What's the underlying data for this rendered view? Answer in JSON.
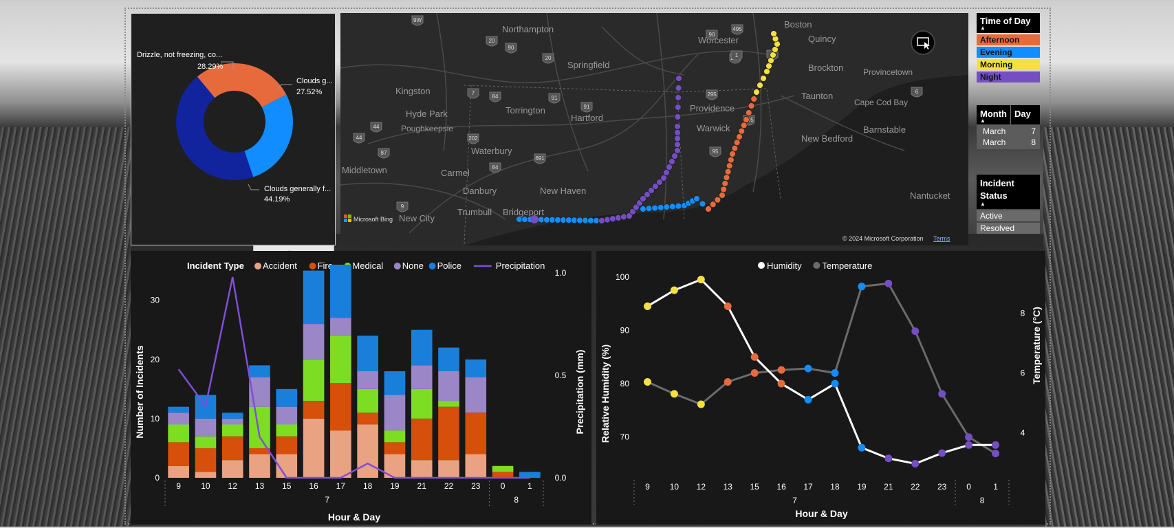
{
  "donut": {
    "slices": [
      {
        "label": "Drizzle, not freezing, co...",
        "pct_label": "28.29%",
        "value": 28.29,
        "color": "#E66A3C"
      },
      {
        "label": "Clouds g...",
        "pct_label": "27.52%",
        "value": 27.52,
        "color": "#118DFF"
      },
      {
        "label": "Clouds generally f...",
        "pct_label": "44.19%",
        "value": 44.19,
        "color": "#12239E"
      }
    ]
  },
  "map": {
    "cities": [
      "Northampton",
      "Boston",
      "Worcester",
      "Quincy",
      "Springfield",
      "Brockton",
      "Kingston",
      "Hyde Park",
      "Poughkeepsie",
      "Torrington",
      "Hartford",
      "Providence",
      "Taunton",
      "Provincetown",
      "Warwick",
      "Cape Cod Bay",
      "Barnstable",
      "Waterbury",
      "New Bedford",
      "Middletown",
      "Carmel",
      "New Haven",
      "Danbury",
      "Nantucket",
      "New City",
      "Trumbull",
      "Bridgeport"
    ],
    "shields": [
      "9W",
      "91",
      "20",
      "90",
      "20",
      "90",
      "84",
      "7",
      "44",
      "91",
      "202",
      "84",
      "691",
      "87",
      "44",
      "9",
      "495",
      "290",
      "1",
      "295",
      "195",
      "95",
      "6",
      "1"
    ],
    "brand": "Microsoft Bing",
    "copyright": "© 2024 Microsoft Corporation",
    "terms": "Terms",
    "route_colors": {
      "Afternoon": "#E66A3C",
      "Evening": "#118DFF",
      "Morning": "#F5E13D",
      "Night": "#744EC2"
    }
  },
  "slicers": {
    "time_of_day": {
      "title": "Time of Day",
      "items": [
        {
          "label": "Afternoon",
          "color": "#E66A3C"
        },
        {
          "label": "Evening",
          "color": "#118DFF"
        },
        {
          "label": "Morning",
          "color": "#F5E13D"
        },
        {
          "label": "Night",
          "color": "#744EC2"
        }
      ]
    },
    "month_day": {
      "col1": "Month",
      "col2": "Day",
      "rows": [
        {
          "month": "March",
          "day": "7"
        },
        {
          "month": "March",
          "day": "8"
        }
      ]
    },
    "incident_status": {
      "title": "Incident Status",
      "items": [
        "Active",
        "Resolved"
      ]
    }
  },
  "chart_data": [
    {
      "type": "bar",
      "stacked": true,
      "legend_title": "Incident Type",
      "categories": [
        "9",
        "10",
        "12",
        "13",
        "15",
        "16",
        "17",
        "18",
        "19",
        "21",
        "22",
        "23",
        "0",
        "1"
      ],
      "groups": [
        {
          "label": "7",
          "count": 12
        },
        {
          "label": "8",
          "count": 2
        }
      ],
      "series": [
        {
          "name": "Accident",
          "color": "#E9A282",
          "values": [
            2,
            1,
            3,
            4,
            4,
            10,
            8,
            9,
            4,
            3,
            3,
            4,
            0,
            0
          ]
        },
        {
          "name": "Fire",
          "color": "#D64F0B",
          "values": [
            4,
            4,
            4,
            1,
            3,
            3,
            8,
            2,
            2,
            7,
            9,
            7,
            1,
            0
          ]
        },
        {
          "name": "Medical",
          "color": "#7DDD22",
          "values": [
            3,
            2,
            2,
            7,
            2,
            7,
            8,
            4,
            2,
            5,
            1,
            0,
            1,
            0
          ]
        },
        {
          "name": "None",
          "color": "#9B86C8",
          "values": [
            2,
            3,
            1,
            5,
            3,
            6,
            3,
            3,
            6,
            4,
            5,
            6,
            0,
            0
          ]
        },
        {
          "name": "Police",
          "color": "#1A7FDA",
          "values": [
            1,
            4,
            1,
            2,
            3,
            9,
            9,
            6,
            4,
            6,
            4,
            3,
            0,
            1
          ]
        }
      ],
      "line_series": {
        "name": "Precipitation",
        "color": "#7E4FD8",
        "values": [
          0.53,
          0.35,
          0.98,
          0.2,
          0.0,
          0.0,
          0.0,
          0.07,
          0.0,
          0.0,
          0.0,
          0.0,
          0.0,
          0.0
        ]
      },
      "xlabel": "Hour & Day",
      "ylabel": "Number of Incidents",
      "y2label": "Precipitation (mm)",
      "ylim": [
        0,
        36
      ],
      "yticks": [
        0,
        10,
        20,
        30
      ],
      "y2lim": [
        0,
        1.0
      ],
      "y2ticks": [
        "0.0",
        "0.5",
        "1.0"
      ],
      "legend_position": "top"
    },
    {
      "type": "line",
      "categories": [
        "9",
        "10",
        "12",
        "13",
        "15",
        "16",
        "17",
        "18",
        "19",
        "21",
        "22",
        "23",
        "0",
        "1"
      ],
      "groups": [
        {
          "label": "7",
          "count": 12
        },
        {
          "label": "8",
          "count": 2
        }
      ],
      "series": [
        {
          "name": "Humidity",
          "color": "#FFFFFF",
          "axis": "left",
          "values": [
            94.5,
            97.5,
            99.5,
            94.5,
            85,
            80,
            77,
            80,
            68,
            66,
            65,
            67,
            68.5,
            68.5
          ]
        },
        {
          "name": "Temperature",
          "color": "#6B6B6B",
          "axis": "right",
          "values": [
            5.7,
            5.3,
            4.95,
            5.7,
            6,
            6.1,
            6.15,
            6,
            8.9,
            9.0,
            7.4,
            5.3,
            3.85,
            3.3
          ]
        }
      ],
      "point_colors": [
        "#F5E13D",
        "#F5E13D",
        "#F5E13D",
        "#E66A3C",
        "#E66A3C",
        "#E66A3C",
        "#118DFF",
        "#118DFF",
        "#118DFF",
        "#744EC2",
        "#744EC2",
        "#744EC2",
        "#744EC2",
        "#744EC2"
      ],
      "xlabel": "Hour & Day",
      "ylabel": "Relative Humidity (%)",
      "y2label": "Temperature (°C)",
      "ylim": [
        63,
        101
      ],
      "yticks": [
        70,
        80,
        90,
        100
      ],
      "y2lim": [
        2.6,
        9.4
      ],
      "y2ticks": [
        4,
        6,
        8
      ],
      "legend_position": "top"
    }
  ]
}
